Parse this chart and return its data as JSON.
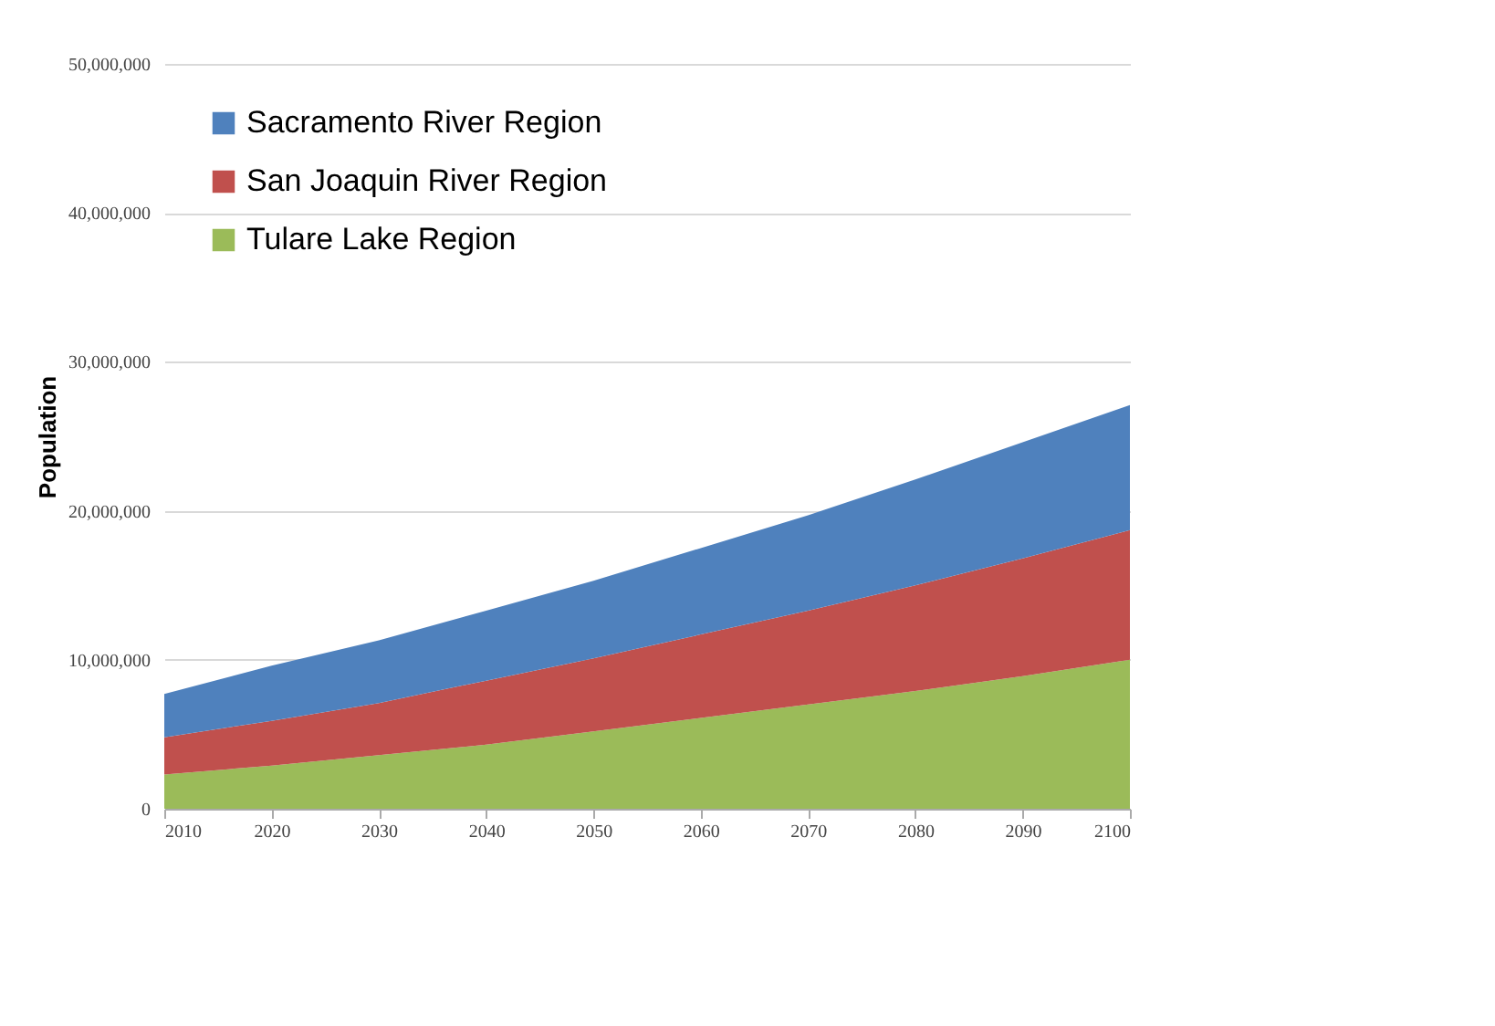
{
  "chart_data": {
    "type": "area",
    "stacked": true,
    "ylabel": "Population",
    "x": [
      2010,
      2020,
      2030,
      2040,
      2050,
      2060,
      2070,
      2080,
      2090,
      2100
    ],
    "series": [
      {
        "name": "Tulare Lake Region",
        "color": "#9bbb59",
        "values": [
          2300000,
          2900000,
          3600000,
          4300000,
          5200000,
          6100000,
          7000000,
          7900000,
          8900000,
          10000000
        ]
      },
      {
        "name": "San Joaquin River Region",
        "color": "#c0504d",
        "values": [
          2500000,
          3000000,
          3500000,
          4300000,
          4900000,
          5600000,
          6300000,
          7100000,
          7900000,
          8700000
        ]
      },
      {
        "name": "Sacramento River Region",
        "color": "#4f81bd",
        "values": [
          2900000,
          3700000,
          4200000,
          4700000,
          5200000,
          5800000,
          6400000,
          7100000,
          7800000,
          8400000
        ]
      }
    ],
    "xlim": [
      2010,
      2100
    ],
    "xticks": [
      2010,
      2020,
      2030,
      2040,
      2050,
      2060,
      2070,
      2080,
      2090,
      2100
    ],
    "ylim": [
      0,
      50000000
    ],
    "yticks": [
      0,
      {
        "value": 10000000,
        "label": "10,000,000"
      },
      {
        "value": 20000000,
        "label": "20,000,000"
      },
      {
        "value": 30000000,
        "label": "30,000,000"
      },
      {
        "value": 40000000,
        "label": "40,000,000"
      },
      {
        "value": 50000000,
        "label": "50,000,000"
      }
    ],
    "grid": "y",
    "legend": "top left"
  }
}
